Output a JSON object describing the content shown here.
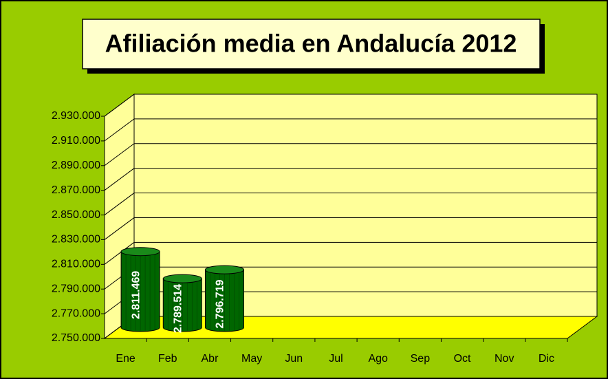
{
  "chart_data": {
    "type": "bar3d",
    "title": "Afiliación media en Andalucía 2012",
    "categories": [
      "Ene",
      "Feb",
      "Abr",
      "May",
      "Jun",
      "Jul",
      "Ago",
      "Sep",
      "Oct",
      "Nov",
      "Dic"
    ],
    "values": [
      2811469,
      2789514,
      2796719,
      null,
      null,
      null,
      null,
      null,
      null,
      null,
      null
    ],
    "value_labels": [
      "2.811.469",
      "2.789.514",
      "2.796.719",
      null,
      null,
      null,
      null,
      null,
      null,
      null,
      null
    ],
    "color": "#006600",
    "ylim": [
      2750000,
      2930000
    ],
    "yticks": [
      {
        "value": 2750000,
        "label": "2.750.000"
      },
      {
        "value": 2770000,
        "label": "2.770.000"
      },
      {
        "value": 2790000,
        "label": "2.790.000"
      },
      {
        "value": 2810000,
        "label": "2.810.000"
      },
      {
        "value": 2830000,
        "label": "2.830.000"
      },
      {
        "value": 2850000,
        "label": "2.850.000"
      },
      {
        "value": 2870000,
        "label": "2.870.000"
      },
      {
        "value": 2890000,
        "label": "2.890.000"
      },
      {
        "value": 2910000,
        "label": "2.910.000"
      },
      {
        "value": 2930000,
        "label": "2.930.000"
      }
    ],
    "grid": true
  }
}
